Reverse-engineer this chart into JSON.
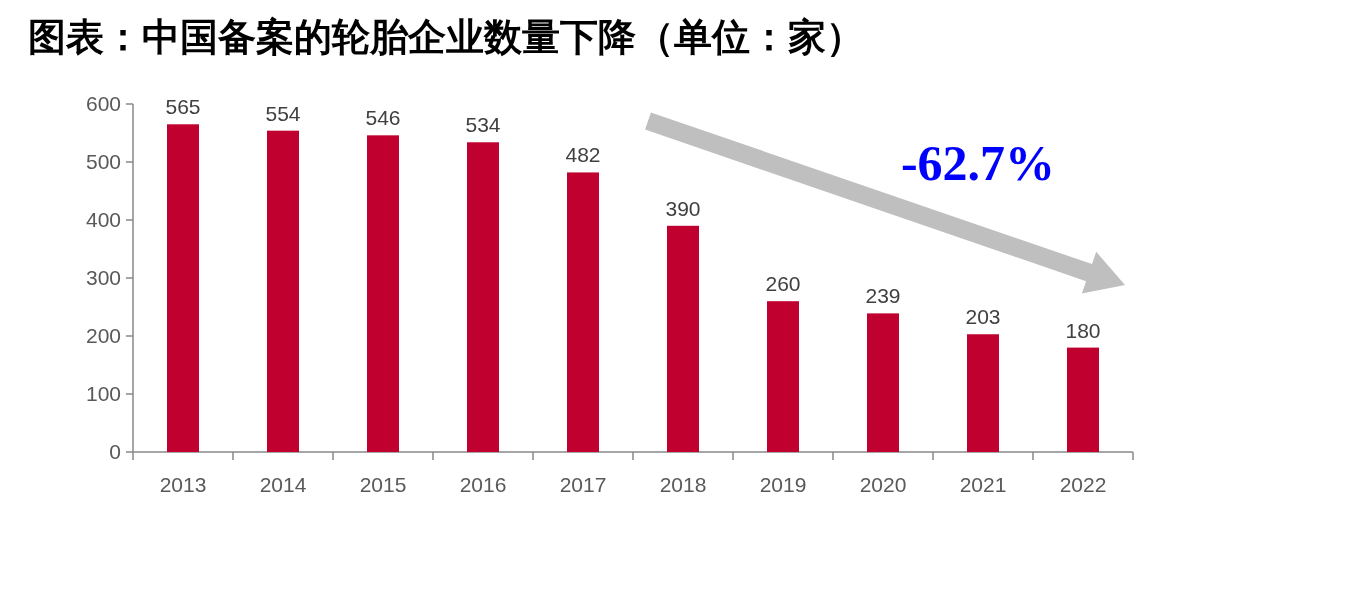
{
  "chart_data": {
    "type": "bar",
    "title": "图表：中国备案的轮胎企业数量下降（单位：家）",
    "categories": [
      "2013",
      "2014",
      "2015",
      "2016",
      "2017",
      "2018",
      "2019",
      "2020",
      "2021",
      "2022"
    ],
    "values": [
      565,
      554,
      546,
      534,
      482,
      390,
      260,
      239,
      203,
      180
    ],
    "color": "#c0002f",
    "ylim": [
      0,
      600
    ],
    "yticks": [
      0,
      100,
      200,
      300,
      400,
      500,
      600
    ],
    "data_labels": true,
    "annotations": [
      "-62.7%"
    ]
  }
}
